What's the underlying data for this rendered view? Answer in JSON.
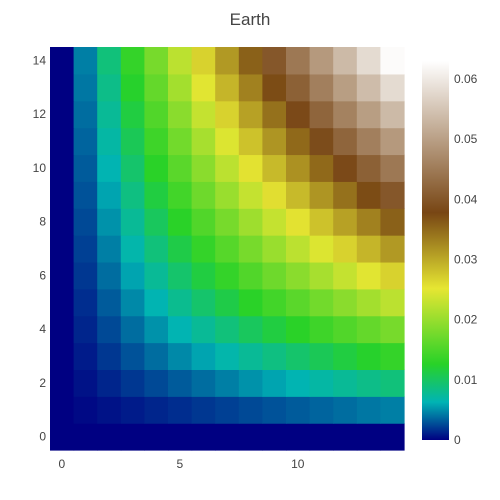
{
  "chart_data": {
    "type": "heatmap",
    "title": "Earth",
    "colorscale": "Earth",
    "colorscale_stops": [
      [
        "0.0",
        "#000082"
      ],
      [
        "0.1",
        "#00b4b4"
      ],
      [
        "0.2",
        "#28d228"
      ],
      [
        "0.4",
        "#e6e632"
      ],
      [
        "0.6",
        "#784614"
      ],
      [
        "1.0",
        "#ffffff"
      ]
    ],
    "x": [
      0,
      1,
      2,
      3,
      4,
      5,
      6,
      7,
      8,
      9,
      10,
      11,
      12,
      13,
      14
    ],
    "y": [
      0,
      1,
      2,
      3,
      4,
      5,
      6,
      7,
      8,
      9,
      10,
      11,
      12,
      13,
      14
    ],
    "xlim": [
      -0.5,
      14.5
    ],
    "ylim": [
      -0.5,
      14.5
    ],
    "x_ticks": [
      0,
      5,
      10
    ],
    "y_ticks": [
      0,
      2,
      4,
      6,
      8,
      10,
      12,
      14
    ],
    "zlim": [
      0,
      0.063
    ],
    "colorbar_ticks": [
      0,
      0.01,
      0.02,
      0.03,
      0.04,
      0.05,
      0.06
    ],
    "z_formula": "z = x*y / 3136  (rows indexed by y, columns by x)",
    "z": [
      [
        0,
        0,
        0,
        0,
        0,
        0,
        0,
        0,
        0,
        0,
        0,
        0,
        0,
        0,
        0
      ],
      [
        0,
        0.00032,
        0.00064,
        0.00096,
        0.00128,
        0.00159,
        0.00191,
        0.00223,
        0.00255,
        0.00287,
        0.00319,
        0.00351,
        0.00383,
        0.00415,
        0.00446
      ],
      [
        0,
        0.00064,
        0.00128,
        0.00191,
        0.00255,
        0.00319,
        0.00383,
        0.00446,
        0.0051,
        0.00574,
        0.00638,
        0.00702,
        0.00765,
        0.00829,
        0.00893
      ],
      [
        0,
        0.00096,
        0.00191,
        0.00287,
        0.00383,
        0.00478,
        0.00574,
        0.0067,
        0.00765,
        0.00861,
        0.00957,
        0.01052,
        0.01148,
        0.01244,
        0.01339
      ],
      [
        0,
        0.00128,
        0.00255,
        0.00383,
        0.0051,
        0.00638,
        0.00765,
        0.00893,
        0.0102,
        0.01148,
        0.01276,
        0.01403,
        0.01531,
        0.01658,
        0.01786
      ],
      [
        0,
        0.00159,
        0.00319,
        0.00478,
        0.00638,
        0.00797,
        0.00957,
        0.01116,
        0.01276,
        0.01435,
        0.01594,
        0.01754,
        0.01913,
        0.02073,
        0.02232
      ],
      [
        0,
        0.00191,
        0.00383,
        0.00574,
        0.00765,
        0.00957,
        0.01148,
        0.01339,
        0.01531,
        0.01722,
        0.01913,
        0.02105,
        0.02296,
        0.02487,
        0.02679
      ],
      [
        0,
        0.00223,
        0.00446,
        0.0067,
        0.00893,
        0.01116,
        0.01339,
        0.01563,
        0.01786,
        0.02009,
        0.02232,
        0.02455,
        0.02679,
        0.02902,
        0.03125
      ],
      [
        0,
        0.00255,
        0.0051,
        0.00765,
        0.0102,
        0.01276,
        0.01531,
        0.01786,
        0.02041,
        0.02296,
        0.02551,
        0.02806,
        0.03061,
        0.03316,
        0.03571
      ],
      [
        0,
        0.00287,
        0.00574,
        0.00861,
        0.01148,
        0.01435,
        0.01722,
        0.02009,
        0.02296,
        0.02583,
        0.0287,
        0.03157,
        0.03444,
        0.03731,
        0.04018
      ],
      [
        0,
        0.00319,
        0.00638,
        0.00957,
        0.01276,
        0.01594,
        0.01913,
        0.02232,
        0.02551,
        0.0287,
        0.03189,
        0.03508,
        0.03827,
        0.04145,
        0.04464
      ],
      [
        0,
        0.00351,
        0.00702,
        0.01052,
        0.01403,
        0.01754,
        0.02105,
        0.02455,
        0.02806,
        0.03157,
        0.03508,
        0.03858,
        0.04209,
        0.0456,
        0.04911
      ],
      [
        0,
        0.00383,
        0.00765,
        0.01148,
        0.01531,
        0.01913,
        0.02296,
        0.02679,
        0.03061,
        0.03444,
        0.03827,
        0.04209,
        0.04592,
        0.04974,
        0.05357
      ],
      [
        0,
        0.00415,
        0.00829,
        0.01244,
        0.01658,
        0.02073,
        0.02487,
        0.02902,
        0.03316,
        0.03731,
        0.04145,
        0.0456,
        0.04974,
        0.05389,
        0.05804
      ],
      [
        0,
        0.00446,
        0.00893,
        0.01339,
        0.01786,
        0.02232,
        0.02679,
        0.03125,
        0.03571,
        0.04018,
        0.04464,
        0.04911,
        0.05357,
        0.05804,
        0.0625
      ]
    ],
    "xlabel": "",
    "ylabel": "",
    "grid": false,
    "legend": "colorbar-right"
  }
}
